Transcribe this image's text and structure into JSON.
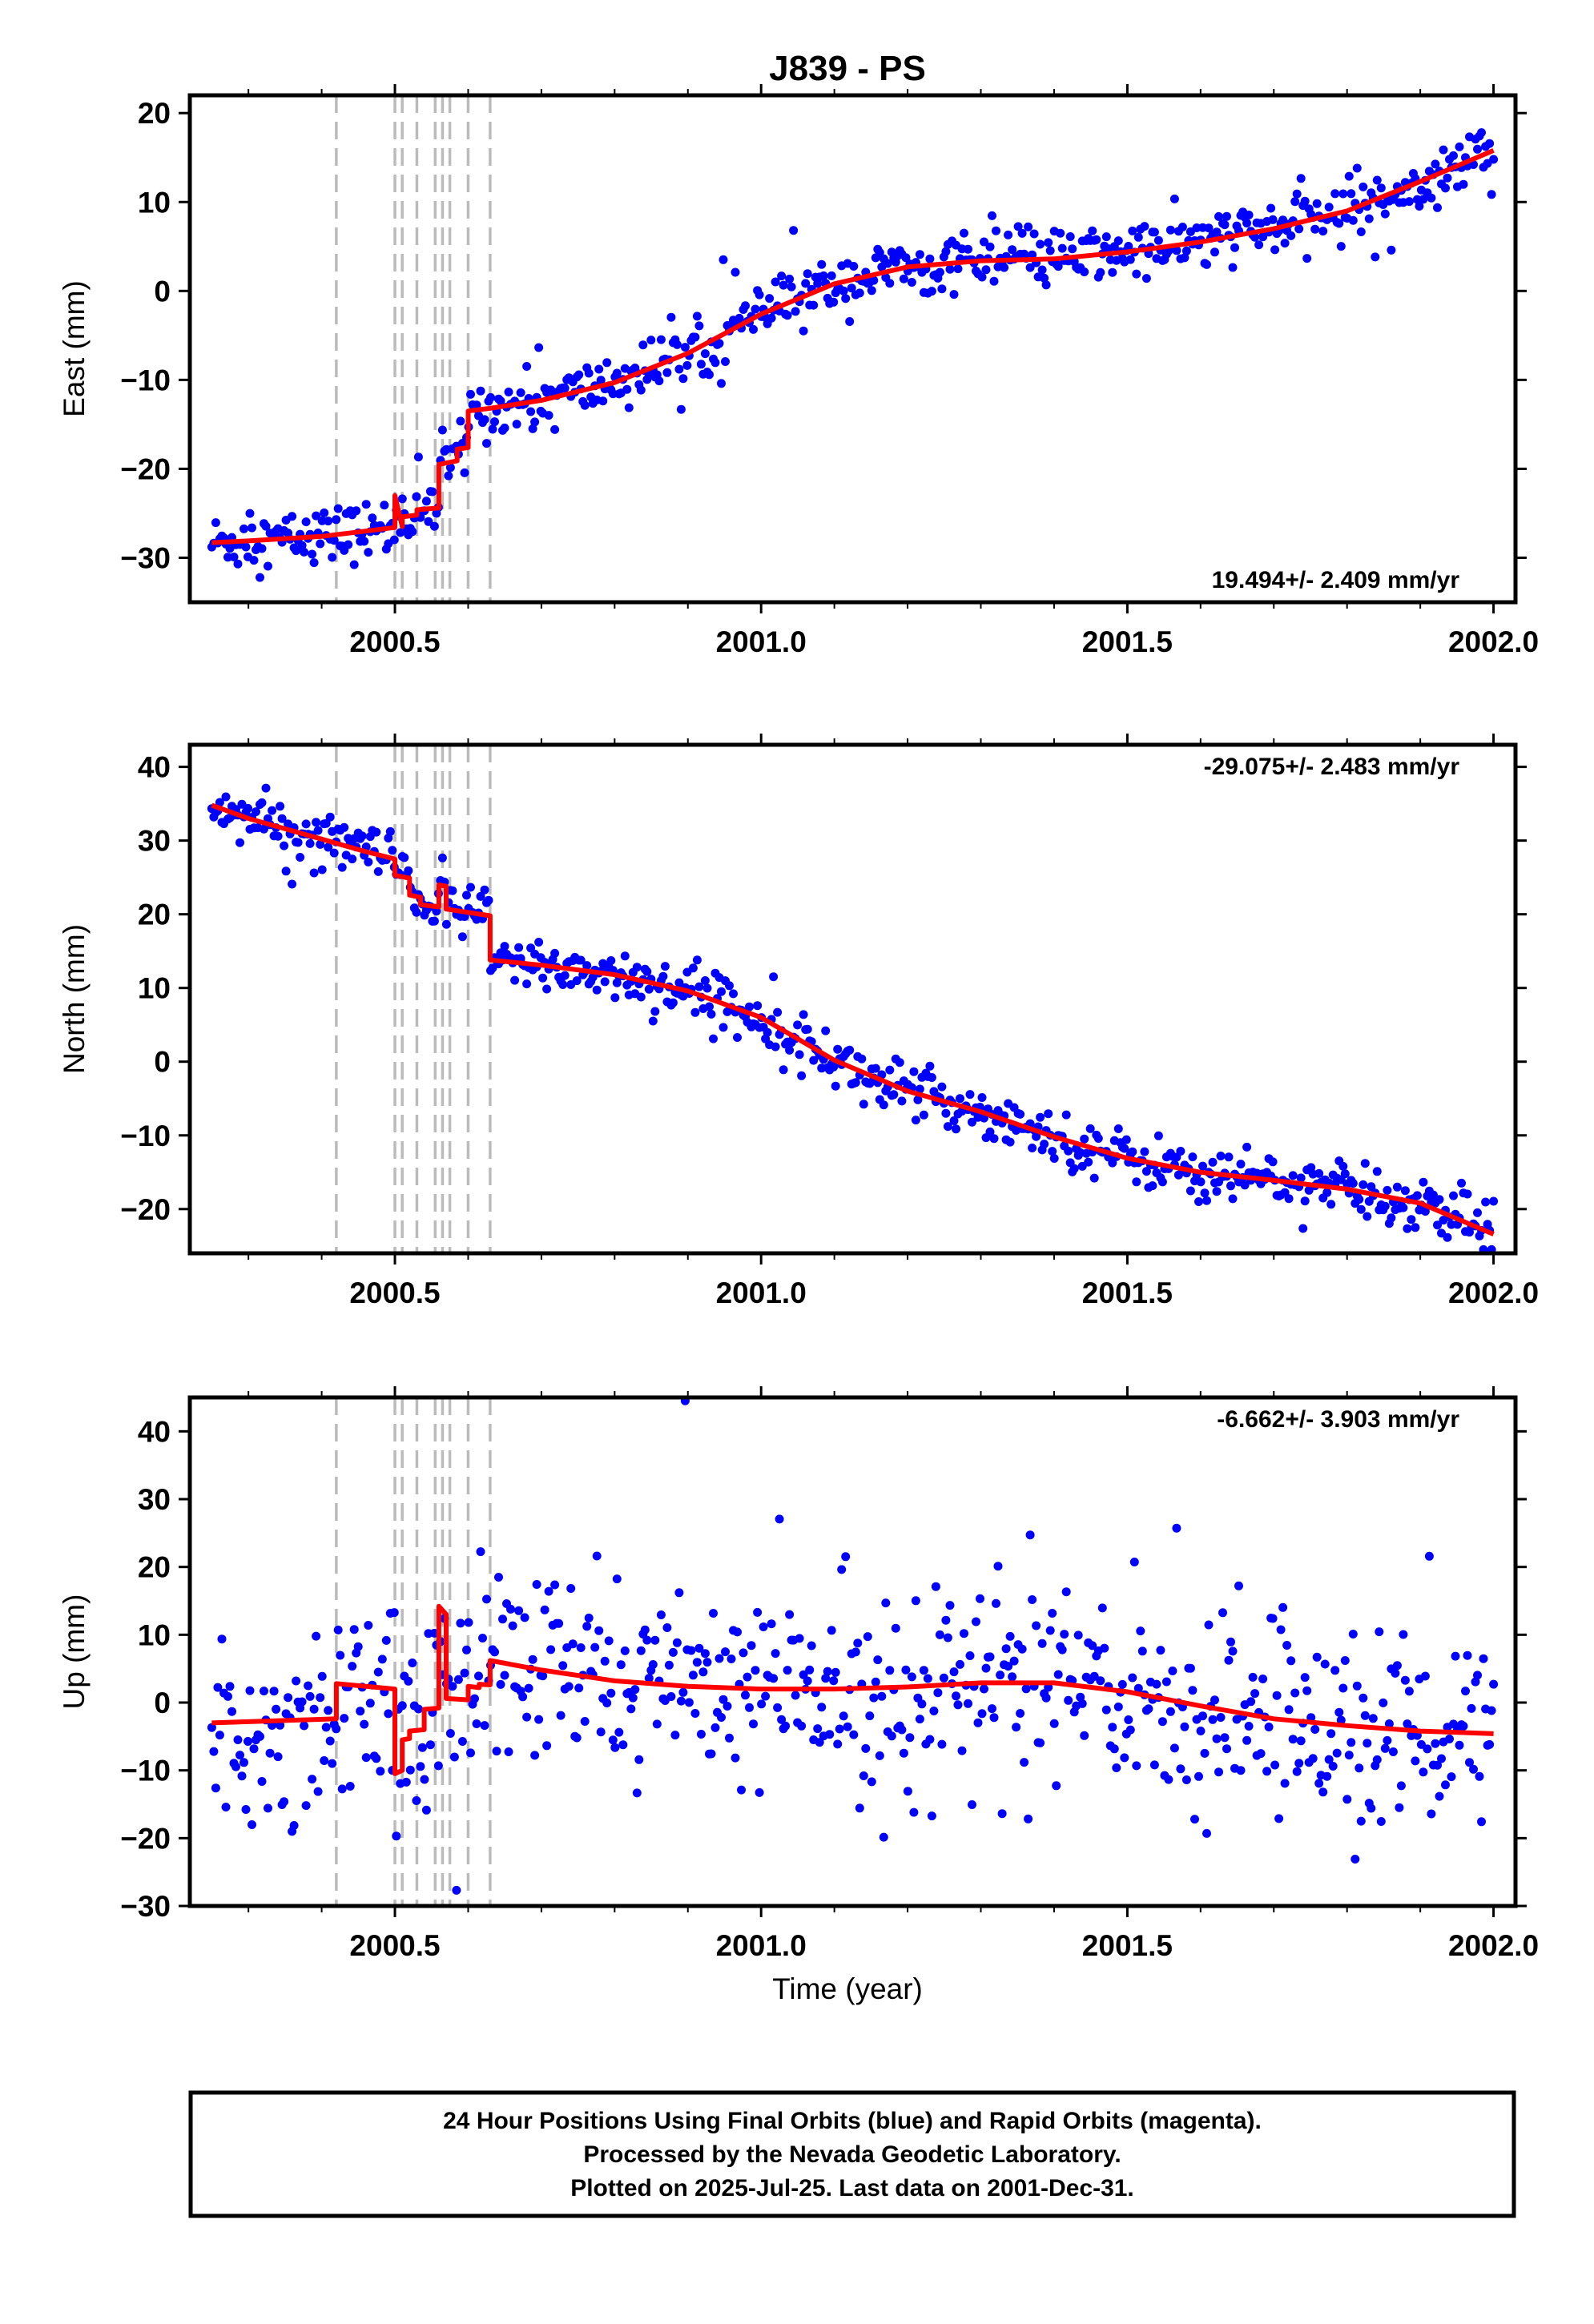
{
  "figure": {
    "title": "J839 - PS",
    "x_axis_label": "Time (year)",
    "caption": [
      "24 Hour Positions Using Final Orbits (blue) and Rapid Orbits (magenta).",
      "Processed by the Nevada Geodetic Laboratory.",
      "Plotted on 2025-Jul-25. Last data on 2001-Dec-31."
    ]
  },
  "colors": {
    "points": "#0000ff",
    "model": "#ff0000",
    "steps": "#bbbbbb",
    "frame": "#000000"
  },
  "chart_data": [
    {
      "type": "scatter",
      "name": "east",
      "ylabel": "East (mm)",
      "xlim": [
        2000.22,
        2002.03
      ],
      "ylim": [
        -35,
        22
      ],
      "xticks": [
        2000.5,
        2001.0,
        2001.5,
        2002.0
      ],
      "xtick_labels": [
        "2000.5",
        "2001.0",
        "2001.5",
        "2002.0"
      ],
      "yticks": [
        -30,
        -20,
        -10,
        0,
        10,
        20
      ],
      "ytick_labels": [
        "−30",
        "−20",
        "−10",
        "0",
        "10",
        "20"
      ],
      "rate_label": "19.494+/- 2.409 mm/yr",
      "rate_label_position": "bottom-right",
      "steps": [
        2000.42,
        2000.5,
        2000.51,
        2000.53,
        2000.555,
        2000.565,
        2000.575,
        2000.6,
        2000.63
      ],
      "model": {
        "x": [
          2000.25,
          2000.3,
          2000.4,
          2000.46,
          2000.5,
          2000.5,
          2000.51,
          2000.51,
          2000.53,
          2000.53,
          2000.56,
          2000.56,
          2000.585,
          2000.585,
          2000.6,
          2000.6,
          2000.63,
          2000.7,
          2000.8,
          2000.9,
          2001.0,
          2001.1,
          2001.2,
          2001.3,
          2001.4,
          2001.5,
          2001.6,
          2001.7,
          2001.8,
          2001.9,
          2002.0
        ],
        "y": [
          -28.3,
          -28.1,
          -27.6,
          -27.0,
          -26.6,
          -23.0,
          -26.5,
          -25.4,
          -25.2,
          -24.6,
          -24.4,
          -19.5,
          -19.1,
          -17.8,
          -17.6,
          -13.5,
          -13.2,
          -12.3,
          -10.3,
          -7.0,
          -2.6,
          0.8,
          2.7,
          3.4,
          3.6,
          4.4,
          5.5,
          7.0,
          9.0,
          12.3,
          15.8
        ]
      },
      "points": {
        "pattern": "noise around model",
        "scatter_mm": 1.6,
        "n_days": 640
      }
    },
    {
      "type": "scatter",
      "name": "north",
      "ylabel": "North (mm)",
      "xlim": [
        2000.22,
        2002.03
      ],
      "ylim": [
        -26,
        43
      ],
      "xticks": [
        2000.5,
        2001.0,
        2001.5,
        2002.0
      ],
      "xtick_labels": [
        "2000.5",
        "2001.0",
        "2001.5",
        "2002.0"
      ],
      "yticks": [
        -20,
        -10,
        0,
        10,
        20,
        30,
        40
      ],
      "ytick_labels": [
        "−20",
        "−10",
        "0",
        "10",
        "20",
        "30",
        "40"
      ],
      "rate_label": "-29.075+/- 2.483 mm/yr",
      "rate_label_position": "top-right",
      "steps": [
        2000.42,
        2000.5,
        2000.51,
        2000.53,
        2000.555,
        2000.565,
        2000.575,
        2000.6,
        2000.63
      ],
      "model": {
        "x": [
          2000.25,
          2000.3,
          2000.4,
          2000.46,
          2000.5,
          2000.5,
          2000.52,
          2000.52,
          2000.535,
          2000.535,
          2000.56,
          2000.56,
          2000.57,
          2000.57,
          2000.63,
          2000.63,
          2000.7,
          2000.8,
          2000.9,
          2001.0,
          2001.1,
          2001.2,
          2001.3,
          2001.4,
          2001.5,
          2001.6,
          2001.7,
          2001.8,
          2001.9,
          2002.0
        ],
        "y": [
          34.8,
          33.0,
          30.2,
          28.5,
          27.5,
          25.3,
          24.9,
          22.6,
          22.3,
          21.3,
          21.0,
          24.0,
          23.8,
          20.7,
          19.8,
          13.8,
          13.1,
          11.8,
          9.6,
          6.0,
          0.2,
          -4.0,
          -6.8,
          -10.2,
          -13.1,
          -15.0,
          -16.1,
          -17.3,
          -19.2,
          -23.4
        ]
      },
      "points": {
        "pattern": "noise around model",
        "scatter_mm": 1.8,
        "n_days": 640
      }
    },
    {
      "type": "scatter",
      "name": "up",
      "ylabel": "Up (mm)",
      "xlim": [
        2000.22,
        2002.03
      ],
      "ylim": [
        -30,
        45
      ],
      "xticks": [
        2000.5,
        2001.0,
        2001.5,
        2002.0
      ],
      "xtick_labels": [
        "2000.5",
        "2001.0",
        "2001.5",
        "2002.0"
      ],
      "yticks": [
        -30,
        -20,
        -10,
        0,
        10,
        20,
        30,
        40
      ],
      "ytick_labels": [
        "−30",
        "−20",
        "−10",
        "0",
        "10",
        "20",
        "30",
        "40"
      ],
      "rate_label": "-6.662+/- 3.903 mm/yr",
      "rate_label_position": "top-right",
      "steps": [
        2000.42,
        2000.5,
        2000.51,
        2000.53,
        2000.555,
        2000.565,
        2000.575,
        2000.6,
        2000.63
      ],
      "model": {
        "x": [
          2000.25,
          2000.42,
          2000.42,
          2000.5,
          2000.5,
          2000.51,
          2000.51,
          2000.52,
          2000.52,
          2000.54,
          2000.54,
          2000.56,
          2000.56,
          2000.57,
          2000.57,
          2000.6,
          2000.6,
          2000.615,
          2000.615,
          2000.63,
          2000.63,
          2000.7,
          2000.8,
          2000.9,
          2001.0,
          2001.1,
          2001.2,
          2001.3,
          2001.4,
          2001.5,
          2001.6,
          2001.7,
          2001.8,
          2001.9,
          2002.0
        ],
        "y": [
          -3.0,
          -2.4,
          2.8,
          2.0,
          -10.5,
          -10.0,
          -5.5,
          -5.3,
          -4.2,
          -4.0,
          -1.0,
          -0.8,
          14.2,
          13.0,
          0.6,
          0.4,
          2.4,
          2.2,
          2.7,
          2.6,
          6.2,
          4.8,
          3.2,
          2.4,
          2.0,
          2.0,
          2.3,
          2.9,
          2.9,
          1.6,
          -0.5,
          -2.4,
          -3.4,
          -4.2,
          -4.6
        ]
      },
      "points": {
        "pattern": "noise around model",
        "scatter_mm": 7.5,
        "n_days": 640
      }
    }
  ]
}
